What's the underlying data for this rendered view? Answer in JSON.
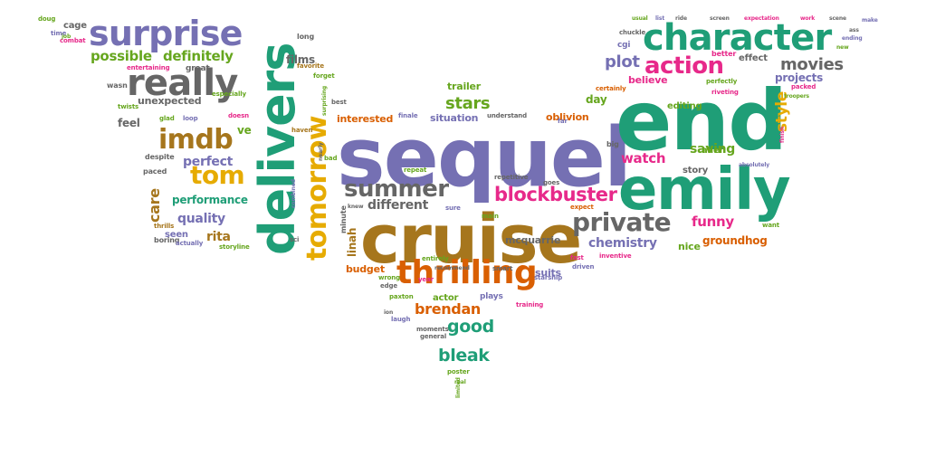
{
  "palette": {
    "teal": "#1f9e77",
    "purple": "#7570b3",
    "orange": "#d95f02",
    "brown": "#a6761d",
    "gray": "#666666",
    "magenta": "#e7298a",
    "green": "#66a61e",
    "gold": "#e6ab02"
  },
  "words": [
    {
      "text": "sequel",
      "color": "purple"
    },
    {
      "text": "end",
      "color": "teal"
    },
    {
      "text": "cruise",
      "color": "brown"
    },
    {
      "text": "delivers",
      "color": "teal"
    },
    {
      "text": "emily",
      "color": "teal"
    },
    {
      "text": "character",
      "color": "teal"
    },
    {
      "text": "surprise",
      "color": "purple"
    },
    {
      "text": "really",
      "color": "gray"
    },
    {
      "text": "tomorrow",
      "color": "gold"
    },
    {
      "text": "thrilling",
      "color": "orange"
    },
    {
      "text": "summer",
      "color": "gray"
    },
    {
      "text": "private",
      "color": "gray"
    },
    {
      "text": "blockbuster",
      "color": "magenta"
    },
    {
      "text": "action",
      "color": "magenta"
    },
    {
      "text": "imdb",
      "color": "brown"
    },
    {
      "text": "tom",
      "color": "gold"
    },
    {
      "text": "movies",
      "color": "gray"
    },
    {
      "text": "plot",
      "color": "purple"
    },
    {
      "text": "possible",
      "color": "green"
    },
    {
      "text": "definitely",
      "color": "green"
    },
    {
      "text": "good",
      "color": "teal"
    },
    {
      "text": "bleak",
      "color": "teal"
    },
    {
      "text": "brendan",
      "color": "orange"
    },
    {
      "text": "stars",
      "color": "green"
    },
    {
      "text": "watch",
      "color": "magenta"
    },
    {
      "text": "funny",
      "color": "magenta"
    },
    {
      "text": "groundhog",
      "color": "orange"
    },
    {
      "text": "chemistry",
      "color": "purple"
    },
    {
      "text": "style",
      "color": "gold"
    },
    {
      "text": "saving",
      "color": "green"
    },
    {
      "text": "quality",
      "color": "purple"
    },
    {
      "text": "perfect",
      "color": "purple"
    },
    {
      "text": "care",
      "color": "brown"
    },
    {
      "text": "rita",
      "color": "brown"
    },
    {
      "text": "performance",
      "color": "teal"
    },
    {
      "text": "different",
      "color": "gray"
    },
    {
      "text": "trailer",
      "color": "green"
    },
    {
      "text": "interested",
      "color": "orange"
    },
    {
      "text": "oblivion",
      "color": "orange"
    },
    {
      "text": "situation",
      "color": "purple"
    },
    {
      "text": "editing",
      "color": "green"
    },
    {
      "text": "projects",
      "color": "purple"
    },
    {
      "text": "believe",
      "color": "magenta"
    },
    {
      "text": "films",
      "color": "gray"
    },
    {
      "text": "unexpected",
      "color": "gray"
    },
    {
      "text": "cage",
      "color": "gray"
    },
    {
      "text": "budget",
      "color": "orange"
    },
    {
      "text": "linah",
      "color": "brown"
    },
    {
      "text": "mcquarrie",
      "color": "gray"
    },
    {
      "text": "actor",
      "color": "green"
    },
    {
      "text": "plays",
      "color": "purple"
    },
    {
      "text": "suits",
      "color": "purple"
    },
    {
      "text": "nice",
      "color": "green"
    },
    {
      "text": "story",
      "color": "gray"
    },
    {
      "text": "alien",
      "color": "green"
    },
    {
      "text": "ve",
      "color": "green"
    },
    {
      "text": "seen",
      "color": "purple"
    },
    {
      "text": "feel",
      "color": "gray"
    },
    {
      "text": "day",
      "color": "green"
    },
    {
      "text": "great",
      "color": "gray"
    },
    {
      "text": "cgi",
      "color": "purple"
    },
    {
      "text": "effect",
      "color": "gray"
    },
    {
      "text": "better",
      "color": "magenta"
    },
    {
      "text": "doug",
      "color": "green"
    },
    {
      "text": "combat",
      "color": "magenta"
    },
    {
      "text": "time",
      "color": "purple"
    },
    {
      "text": "long",
      "color": "gray"
    },
    {
      "text": "wasn",
      "color": "gray"
    },
    {
      "text": "entertaining",
      "color": "magenta"
    },
    {
      "text": "especially",
      "color": "green"
    },
    {
      "text": "favorite",
      "color": "brown"
    },
    {
      "text": "forget",
      "color": "green"
    },
    {
      "text": "twists",
      "color": "green"
    },
    {
      "text": "glad",
      "color": "green"
    },
    {
      "text": "loop",
      "color": "purple"
    },
    {
      "text": "doesn",
      "color": "magenta"
    },
    {
      "text": "despite",
      "color": "gray"
    },
    {
      "text": "paced",
      "color": "gray"
    },
    {
      "text": "thrills",
      "color": "brown"
    },
    {
      "text": "job",
      "color": "green"
    },
    {
      "text": "boring",
      "color": "gray"
    },
    {
      "text": "actually",
      "color": "purple"
    },
    {
      "text": "storyline",
      "color": "green"
    },
    {
      "text": "sci",
      "color": "gray"
    },
    {
      "text": "haven",
      "color": "brown"
    },
    {
      "text": "bad",
      "color": "green"
    },
    {
      "text": "best",
      "color": "gray"
    },
    {
      "text": "minute",
      "color": "gray"
    },
    {
      "text": "repeat",
      "color": "green"
    },
    {
      "text": "repetitive",
      "color": "gray"
    },
    {
      "text": "finale",
      "color": "purple"
    },
    {
      "text": "understand",
      "color": "gray"
    },
    {
      "text": "usual",
      "color": "green"
    },
    {
      "text": "list",
      "color": "purple"
    },
    {
      "text": "ride",
      "color": "gray"
    },
    {
      "text": "screen",
      "color": "gray"
    },
    {
      "text": "expectation",
      "color": "magenta"
    },
    {
      "text": "work",
      "color": "magenta"
    },
    {
      "text": "scene",
      "color": "gray"
    },
    {
      "text": "make",
      "color": "purple"
    },
    {
      "text": "ending",
      "color": "purple"
    },
    {
      "text": "chuckle",
      "color": "gray"
    },
    {
      "text": "new",
      "color": "green"
    },
    {
      "text": "perfectly",
      "color": "green"
    },
    {
      "text": "certainly",
      "color": "orange"
    },
    {
      "text": "riveting",
      "color": "magenta"
    },
    {
      "text": "packed",
      "color": "magenta"
    },
    {
      "text": "troopers",
      "color": "green"
    },
    {
      "text": "finish",
      "color": "magenta"
    },
    {
      "text": "absolutely",
      "color": "purple"
    },
    {
      "text": "want",
      "color": "green"
    },
    {
      "text": "big",
      "color": "gray"
    },
    {
      "text": "expect",
      "color": "orange"
    },
    {
      "text": "goes",
      "color": "gray"
    },
    {
      "text": "fast",
      "color": "magenta"
    },
    {
      "text": "driven",
      "color": "purple"
    },
    {
      "text": "inventive",
      "color": "magenta"
    },
    {
      "text": "starship",
      "color": "purple"
    },
    {
      "text": "smart",
      "color": "gray"
    },
    {
      "text": "main",
      "color": "green"
    },
    {
      "text": "sure",
      "color": "purple"
    },
    {
      "text": "entirely",
      "color": "green"
    },
    {
      "text": "wrong",
      "color": "green"
    },
    {
      "text": "edge",
      "color": "gray"
    },
    {
      "text": "paxton",
      "color": "green"
    },
    {
      "text": "laugh",
      "color": "purple"
    },
    {
      "text": "year",
      "color": "magenta"
    },
    {
      "text": "moments",
      "color": "gray"
    },
    {
      "text": "general",
      "color": "gray"
    },
    {
      "text": "training",
      "color": "magenta"
    },
    {
      "text": "poster",
      "color": "green"
    },
    {
      "text": "real",
      "color": "green"
    },
    {
      "text": "limited",
      "color": "green"
    },
    {
      "text": "knew",
      "color": "gray"
    },
    {
      "text": "ion",
      "color": "gray"
    },
    {
      "text": "far",
      "color": "purple"
    },
    {
      "text": "recommend",
      "color": "gray"
    },
    {
      "text": "nearly",
      "color": "gray"
    },
    {
      "text": "surprising",
      "color": "green"
    },
    {
      "text": "combined",
      "color": "purple"
    },
    {
      "text": "old",
      "color": "purple"
    },
    {
      "text": "ass",
      "color": "gray"
    }
  ]
}
